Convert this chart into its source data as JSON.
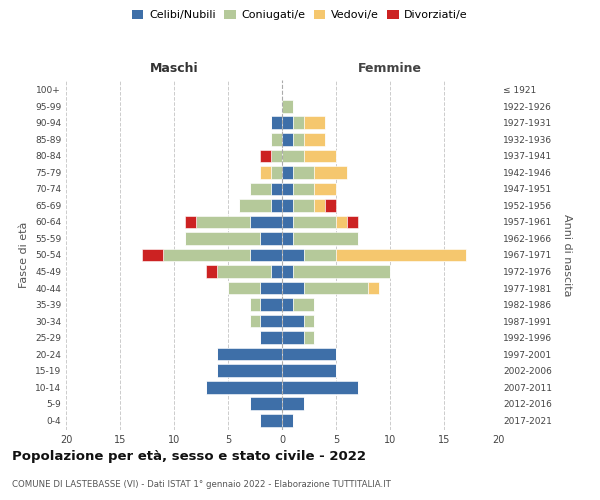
{
  "age_groups": [
    "100+",
    "95-99",
    "90-94",
    "85-89",
    "80-84",
    "75-79",
    "70-74",
    "65-69",
    "60-64",
    "55-59",
    "50-54",
    "45-49",
    "40-44",
    "35-39",
    "30-34",
    "25-29",
    "20-24",
    "15-19",
    "10-14",
    "5-9",
    "0-4"
  ],
  "birth_years": [
    "≤ 1921",
    "1922-1926",
    "1927-1931",
    "1932-1936",
    "1937-1941",
    "1942-1946",
    "1947-1951",
    "1952-1956",
    "1957-1961",
    "1962-1966",
    "1967-1971",
    "1972-1976",
    "1977-1981",
    "1982-1986",
    "1987-1991",
    "1992-1996",
    "1997-2001",
    "2002-2006",
    "2007-2011",
    "2012-2016",
    "2017-2021"
  ],
  "colors": {
    "celibi": "#3e6fa8",
    "coniugati": "#b5c99a",
    "vedovi": "#f5c76e",
    "divorziati": "#cc2222"
  },
  "male": {
    "celibi": [
      0,
      0,
      1,
      0,
      0,
      0,
      1,
      1,
      3,
      2,
      3,
      1,
      2,
      2,
      2,
      2,
      6,
      6,
      7,
      3,
      2
    ],
    "coniugati": [
      0,
      0,
      0,
      1,
      1,
      1,
      2,
      3,
      5,
      7,
      8,
      5,
      3,
      1,
      1,
      0,
      0,
      0,
      0,
      0,
      0
    ],
    "vedovi": [
      0,
      0,
      0,
      0,
      0,
      1,
      0,
      0,
      0,
      0,
      0,
      0,
      0,
      0,
      0,
      0,
      0,
      0,
      0,
      0,
      0
    ],
    "divorziati": [
      0,
      0,
      0,
      0,
      1,
      0,
      0,
      0,
      1,
      0,
      2,
      1,
      0,
      0,
      0,
      0,
      0,
      0,
      0,
      0,
      0
    ]
  },
  "female": {
    "celibi": [
      0,
      0,
      1,
      1,
      0,
      1,
      1,
      1,
      1,
      1,
      2,
      1,
      2,
      1,
      2,
      2,
      5,
      5,
      7,
      2,
      1
    ],
    "coniugati": [
      0,
      1,
      1,
      1,
      2,
      2,
      2,
      2,
      4,
      6,
      3,
      9,
      6,
      2,
      1,
      1,
      0,
      0,
      0,
      0,
      0
    ],
    "vedovi": [
      0,
      0,
      2,
      2,
      3,
      3,
      2,
      1,
      1,
      0,
      12,
      0,
      1,
      0,
      0,
      0,
      0,
      0,
      0,
      0,
      0
    ],
    "divorziati": [
      0,
      0,
      0,
      0,
      0,
      0,
      0,
      1,
      1,
      0,
      0,
      0,
      0,
      0,
      0,
      0,
      0,
      0,
      0,
      0,
      0
    ]
  },
  "title": "Popolazione per età, sesso e stato civile - 2022",
  "subtitle": "COMUNE DI LASTEBASSE (VI) - Dati ISTAT 1° gennaio 2022 - Elaborazione TUTTITALIA.IT",
  "xlabel_left": "Maschi",
  "xlabel_right": "Femmine",
  "ylabel_left": "Fasce di età",
  "ylabel_right": "Anni di nascita",
  "xlim": 20,
  "legend_labels": [
    "Celibi/Nubili",
    "Coniugati/e",
    "Vedovi/e",
    "Divorziati/e"
  ],
  "background_color": "#ffffff",
  "grid_color": "#cccccc"
}
